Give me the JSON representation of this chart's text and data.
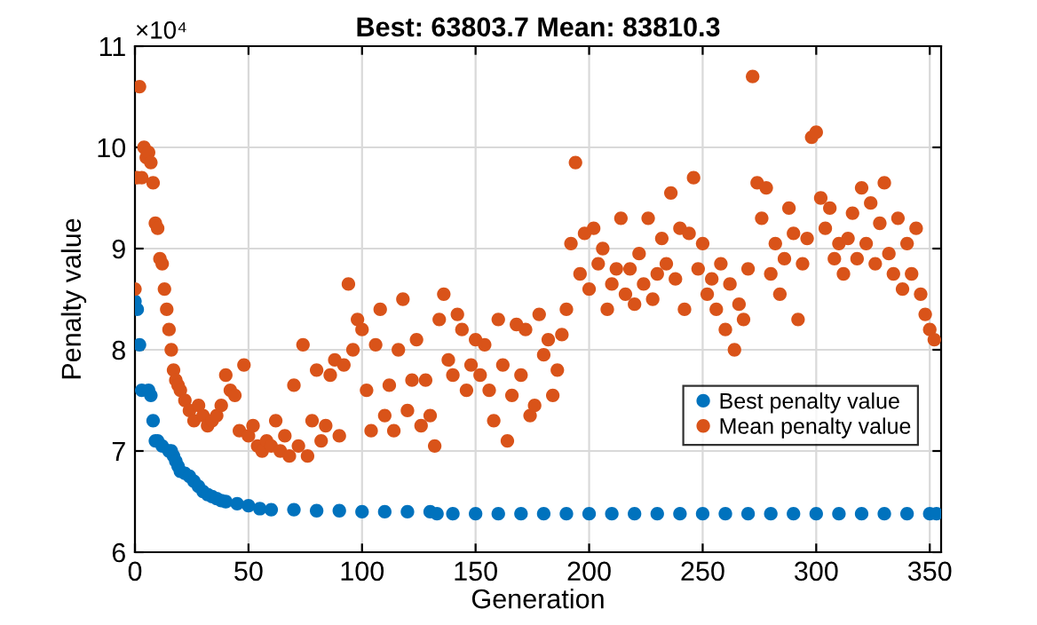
{
  "chart_data": {
    "type": "scatter",
    "title": "Best: 63803.7 Mean: 83810.3",
    "xlabel": "Generation",
    "ylabel": "Penalty value",
    "annotations": [
      "×10⁴"
    ],
    "xlim": [
      0,
      355
    ],
    "xticks": [
      0,
      50,
      100,
      150,
      200,
      250,
      300,
      350
    ],
    "ylim": [
      6,
      11
    ],
    "yticks": [
      6,
      7,
      8,
      9,
      10,
      11
    ],
    "grid": true,
    "legend": "bottom right",
    "marker": "circle",
    "series": [
      {
        "name": "Best penalty value",
        "color": "#0072bd",
        "x": [
          0,
          1,
          2,
          3,
          6,
          7,
          8,
          9,
          10,
          12,
          15,
          16,
          17,
          18,
          19,
          20,
          22,
          24,
          26,
          28,
          30,
          32,
          34,
          36,
          38,
          40,
          45,
          50,
          55,
          60,
          70,
          80,
          90,
          100,
          110,
          120,
          130,
          133,
          140,
          150,
          160,
          170,
          180,
          190,
          200,
          210,
          220,
          230,
          240,
          250,
          260,
          270,
          280,
          290,
          300,
          310,
          320,
          330,
          340,
          350,
          353
        ],
        "values": [
          8.48,
          8.4,
          8.05,
          7.6,
          7.6,
          7.55,
          7.3,
          7.1,
          7.1,
          7.05,
          7.0,
          7.0,
          6.95,
          6.9,
          6.85,
          6.8,
          6.78,
          6.75,
          6.7,
          6.65,
          6.6,
          6.57,
          6.55,
          6.53,
          6.51,
          6.5,
          6.48,
          6.46,
          6.43,
          6.42,
          6.42,
          6.41,
          6.41,
          6.4,
          6.4,
          6.4,
          6.4,
          6.38,
          6.38,
          6.38,
          6.38,
          6.38,
          6.38,
          6.38,
          6.38,
          6.38,
          6.38,
          6.38,
          6.38,
          6.38,
          6.38,
          6.38,
          6.38,
          6.38,
          6.38,
          6.38,
          6.38,
          6.38,
          6.38,
          6.38,
          6.38
        ]
      },
      {
        "name": "Mean penalty value",
        "color": "#d95319",
        "x": [
          0,
          1,
          2,
          3,
          4,
          5,
          6,
          7,
          8,
          9,
          10,
          11,
          12,
          13,
          14,
          15,
          16,
          17,
          18,
          19,
          20,
          22,
          24,
          26,
          28,
          30,
          32,
          34,
          36,
          38,
          40,
          42,
          44,
          46,
          48,
          50,
          52,
          54,
          56,
          58,
          60,
          62,
          64,
          66,
          68,
          70,
          72,
          74,
          76,
          78,
          80,
          82,
          84,
          86,
          88,
          90,
          92,
          94,
          96,
          98,
          100,
          102,
          104,
          106,
          108,
          110,
          112,
          114,
          116,
          118,
          120,
          122,
          124,
          126,
          128,
          130,
          132,
          134,
          136,
          138,
          140,
          142,
          144,
          146,
          148,
          150,
          152,
          154,
          156,
          158,
          160,
          162,
          164,
          166,
          168,
          170,
          172,
          174,
          176,
          178,
          180,
          182,
          184,
          186,
          188,
          190,
          192,
          194,
          196,
          198,
          200,
          202,
          204,
          206,
          208,
          210,
          212,
          214,
          216,
          218,
          220,
          222,
          224,
          226,
          228,
          230,
          232,
          234,
          236,
          238,
          240,
          242,
          244,
          246,
          248,
          250,
          252,
          254,
          256,
          258,
          260,
          262,
          264,
          266,
          268,
          270,
          272,
          274,
          276,
          278,
          280,
          282,
          284,
          286,
          288,
          290,
          292,
          294,
          296,
          298,
          300,
          302,
          304,
          306,
          308,
          310,
          312,
          314,
          316,
          318,
          320,
          322,
          324,
          326,
          328,
          330,
          332,
          334,
          336,
          338,
          340,
          342,
          344,
          346,
          348,
          350,
          352
        ],
        "values": [
          8.6,
          9.7,
          10.6,
          9.7,
          10.0,
          9.9,
          9.95,
          9.85,
          9.65,
          9.25,
          9.2,
          8.9,
          8.85,
          8.6,
          8.4,
          8.2,
          8.0,
          7.8,
          7.7,
          7.65,
          7.6,
          7.5,
          7.4,
          7.3,
          7.45,
          7.35,
          7.25,
          7.3,
          7.35,
          7.45,
          7.75,
          7.6,
          7.55,
          7.2,
          7.85,
          7.15,
          7.25,
          7.05,
          7.0,
          7.1,
          7.05,
          7.3,
          7.0,
          7.15,
          6.95,
          7.65,
          7.05,
          8.05,
          6.95,
          7.3,
          7.8,
          7.1,
          7.25,
          7.75,
          7.9,
          7.15,
          7.85,
          8.65,
          8.0,
          8.3,
          8.2,
          7.6,
          7.2,
          8.05,
          8.4,
          7.35,
          7.65,
          7.2,
          8.0,
          8.5,
          7.4,
          7.7,
          8.1,
          7.25,
          7.7,
          7.35,
          7.05,
          8.3,
          8.55,
          7.9,
          7.75,
          8.35,
          8.2,
          7.6,
          7.85,
          8.1,
          7.75,
          8.05,
          7.6,
          7.3,
          8.3,
          7.85,
          7.1,
          7.55,
          8.25,
          7.75,
          8.2,
          7.35,
          7.45,
          8.35,
          7.95,
          8.1,
          7.55,
          7.8,
          8.15,
          8.4,
          9.05,
          9.85,
          8.75,
          9.15,
          8.6,
          9.2,
          8.85,
          9.0,
          8.4,
          8.65,
          8.8,
          9.3,
          8.55,
          8.8,
          8.45,
          8.95,
          8.65,
          9.3,
          8.5,
          8.75,
          9.1,
          8.85,
          9.55,
          8.7,
          9.2,
          8.4,
          9.15,
          9.7,
          8.8,
          9.05,
          8.55,
          8.7,
          8.4,
          8.85,
          8.2,
          8.65,
          8.0,
          8.45,
          8.3,
          8.8,
          10.7,
          9.65,
          9.3,
          9.6,
          8.75,
          9.05,
          8.55,
          8.9,
          9.4,
          9.15,
          8.3,
          8.85,
          9.1,
          10.1,
          10.15,
          9.5,
          9.2,
          9.4,
          8.9,
          9.05,
          8.75,
          9.1,
          9.35,
          8.9,
          9.6,
          9.05,
          9.45,
          8.85,
          9.25,
          9.65,
          8.95,
          8.75,
          9.3,
          8.6,
          9.05,
          8.75,
          9.2,
          8.55,
          8.35,
          8.2,
          8.1
        ]
      }
    ]
  }
}
